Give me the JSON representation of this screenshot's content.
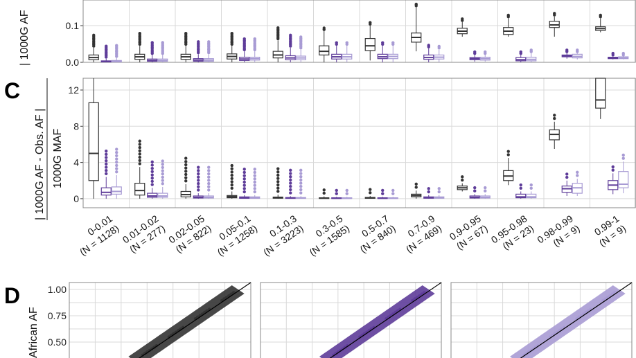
{
  "panels": {
    "B": {
      "ylabel": "| 1000G AF",
      "ticks": [
        "0.0",
        "0.1"
      ],
      "ylim": [
        0,
        0.17
      ]
    },
    "C": {
      "letter": "C",
      "ylabel_top": "| 1000G AF - Obs. AF |",
      "ylabel_bottom": "1000G MAF",
      "ticks": [
        "0",
        "4",
        "8",
        "12"
      ],
      "ylim": [
        -1,
        13.3
      ]
    },
    "D": {
      "letter": "D",
      "ylabel": "African AF",
      "ticks": [
        "0.50",
        "0.75",
        "1.00"
      ]
    }
  },
  "categories": [
    {
      "range": "0-0.01",
      "n": "(N = 1128)"
    },
    {
      "range": "0.01-0.02",
      "n": "(N = 277)"
    },
    {
      "range": "0.02-0.05",
      "n": "(N = 822)"
    },
    {
      "range": "0.05-0.1",
      "n": "(N = 1258)"
    },
    {
      "range": "0.1-0.3",
      "n": "(N = 3223)"
    },
    {
      "range": "0.3-0.5",
      "n": "(N = 1585)"
    },
    {
      "range": "0.5-0.7",
      "n": "(N = 840)"
    },
    {
      "range": "0.7-0.9",
      "n": "(N = 469)"
    },
    {
      "range": "0.9-0.95",
      "n": "(N = 67)"
    },
    {
      "range": "0.95-0.98",
      "n": "(N = 23)"
    },
    {
      "range": "0.98-0.99",
      "n": "(N = 9)"
    },
    {
      "range": "0.99-1",
      "n": "(N = 9)"
    }
  ],
  "colors": {
    "series1": "#333333",
    "series2": "#5e3c99",
    "series3": "#a89bd4",
    "grid": "#d9d9d9",
    "panel_border": "#888888"
  },
  "chart_data": [
    {
      "type": "box",
      "panel": "B",
      "categories": [
        "0-0.01",
        "0.01-0.02",
        "0.02-0.05",
        "0.05-0.1",
        "0.1-0.3",
        "0.3-0.5",
        "0.5-0.7",
        "0.7-0.9",
        "0.9-0.95",
        "0.95-0.98",
        "0.98-0.99",
        "0.99-1"
      ],
      "series": [
        {
          "median": [
            0.013,
            0.015,
            0.015,
            0.016,
            0.02,
            0.03,
            0.045,
            0.068,
            0.085,
            0.085,
            0.102,
            0.092
          ],
          "q1": [
            0.007,
            0.008,
            0.008,
            0.009,
            0.012,
            0.02,
            0.032,
            0.055,
            0.078,
            0.076,
            0.095,
            0.087
          ],
          "q3": [
            0.02,
            0.022,
            0.022,
            0.023,
            0.03,
            0.045,
            0.065,
            0.08,
            0.093,
            0.095,
            0.112,
            0.097
          ],
          "wlo": [
            0.0,
            0.0,
            0.0,
            0.0,
            0.0,
            0.0,
            0.005,
            0.03,
            0.07,
            0.07,
            0.07,
            0.082
          ],
          "whi": [
            0.04,
            0.045,
            0.045,
            0.045,
            0.06,
            0.085,
            0.1,
            0.15,
            0.11,
            0.12,
            0.125,
            0.12
          ]
        },
        {
          "median": [
            0.002,
            0.005,
            0.006,
            0.009,
            0.012,
            0.015,
            0.015,
            0.013,
            0.01,
            0.007,
            0.018,
            0.012
          ],
          "q1": [
            0.001,
            0.003,
            0.003,
            0.005,
            0.007,
            0.009,
            0.01,
            0.008,
            0.007,
            0.004,
            0.015,
            0.01
          ],
          "q3": [
            0.004,
            0.009,
            0.01,
            0.014,
            0.018,
            0.022,
            0.022,
            0.02,
            0.013,
            0.013,
            0.02,
            0.014
          ],
          "wlo": [
            0.0,
            0.0,
            0.0,
            0.0,
            0.0,
            0.0,
            0.0,
            0.0,
            0.002,
            0.0,
            0.01,
            0.008
          ],
          "whi": [
            0.01,
            0.02,
            0.022,
            0.03,
            0.04,
            0.045,
            0.045,
            0.038,
            0.02,
            0.02,
            0.025,
            0.016
          ]
        },
        {
          "median": [
            0.003,
            0.005,
            0.006,
            0.01,
            0.012,
            0.015,
            0.016,
            0.014,
            0.01,
            0.008,
            0.016,
            0.012
          ],
          "q1": [
            0.001,
            0.003,
            0.003,
            0.006,
            0.007,
            0.009,
            0.01,
            0.009,
            0.006,
            0.004,
            0.012,
            0.01
          ],
          "q3": [
            0.005,
            0.009,
            0.01,
            0.014,
            0.017,
            0.022,
            0.022,
            0.02,
            0.014,
            0.014,
            0.022,
            0.015
          ],
          "wlo": [
            0.0,
            0.0,
            0.0,
            0.0,
            0.0,
            0.0,
            0.0,
            0.0,
            0.002,
            0.0,
            0.008,
            0.008
          ],
          "whi": [
            0.012,
            0.02,
            0.022,
            0.03,
            0.035,
            0.045,
            0.045,
            0.035,
            0.02,
            0.025,
            0.025,
            0.016
          ]
        }
      ]
    },
    {
      "type": "box",
      "panel": "C",
      "categories": [
        "0-0.01",
        "0.01-0.02",
        "0.02-0.05",
        "0.05-0.1",
        "0.1-0.3",
        "0.3-0.5",
        "0.5-0.7",
        "0.7-0.9",
        "0.9-0.95",
        "0.95-0.98",
        "0.98-0.99",
        "0.99-1"
      ],
      "series": [
        {
          "median": [
            5.0,
            0.9,
            0.45,
            0.22,
            0.12,
            0.06,
            0.08,
            0.35,
            1.2,
            2.5,
            7.1,
            10.9
          ],
          "q1": [
            2.0,
            0.4,
            0.2,
            0.1,
            0.05,
            0.03,
            0.04,
            0.2,
            1.0,
            2.0,
            6.5,
            10.0
          ],
          "q3": [
            10.6,
            1.7,
            0.8,
            0.35,
            0.18,
            0.1,
            0.14,
            0.5,
            1.4,
            3.1,
            7.6,
            13.3
          ],
          "wlo": [
            0,
            0,
            0,
            0,
            0,
            0,
            0,
            0,
            0.8,
            1.5,
            5.5,
            8.8
          ],
          "whi": [
            13.3,
            3.5,
            1.6,
            0.8,
            0.45,
            0.25,
            0.3,
            0.9,
            1.7,
            4.5,
            8.5,
            13.3
          ]
        },
        {
          "median": [
            0.7,
            0.3,
            0.15,
            0.1,
            0.07,
            0.05,
            0.05,
            0.1,
            0.15,
            0.2,
            1.1,
            1.5
          ],
          "q1": [
            0.4,
            0.15,
            0.07,
            0.04,
            0.03,
            0.02,
            0.02,
            0.05,
            0.07,
            0.1,
            0.7,
            1.0
          ],
          "q3": [
            1.2,
            0.6,
            0.3,
            0.2,
            0.13,
            0.1,
            0.1,
            0.2,
            0.3,
            0.5,
            1.4,
            2.0
          ],
          "wlo": [
            0,
            0,
            0,
            0,
            0,
            0,
            0,
            0,
            0,
            0,
            0.3,
            0.5
          ],
          "whi": [
            2.4,
            1.2,
            0.6,
            0.4,
            0.28,
            0.2,
            0.2,
            0.4,
            0.5,
            0.8,
            2.0,
            2.8
          ]
        },
        {
          "median": [
            0.8,
            0.3,
            0.15,
            0.1,
            0.07,
            0.05,
            0.05,
            0.1,
            0.15,
            0.2,
            1.2,
            1.6
          ],
          "q1": [
            0.5,
            0.15,
            0.07,
            0.04,
            0.03,
            0.02,
            0.02,
            0.05,
            0.07,
            0.1,
            0.6,
            1.2
          ],
          "q3": [
            1.3,
            0.6,
            0.3,
            0.2,
            0.13,
            0.1,
            0.1,
            0.2,
            0.3,
            0.5,
            1.7,
            3.0
          ],
          "wlo": [
            0,
            0,
            0,
            0,
            0,
            0,
            0,
            0,
            0,
            0,
            0.3,
            0.6
          ],
          "whi": [
            2.6,
            1.3,
            0.6,
            0.4,
            0.28,
            0.2,
            0.2,
            0.4,
            0.5,
            0.8,
            2.2,
            4.1
          ]
        }
      ]
    },
    {
      "type": "scatter",
      "panel": "D",
      "ylabel": "African AF",
      "subplots": 3
    }
  ]
}
